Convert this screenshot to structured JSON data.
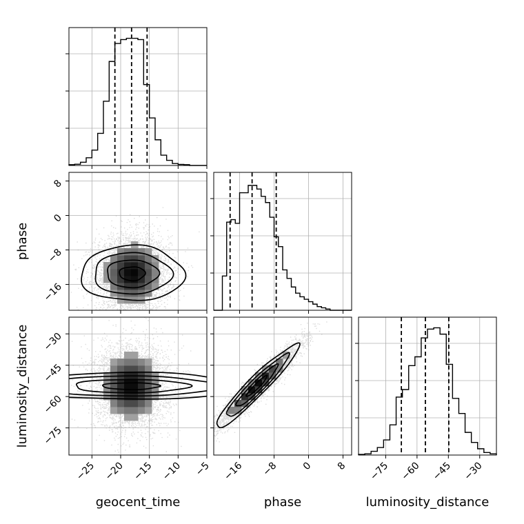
{
  "chart_data": {
    "type": "corner",
    "parameters": [
      "geocent_time",
      "phase",
      "luminosity_distance"
    ],
    "grid": true,
    "ranges": {
      "geocent_time": [
        -29,
        -5
      ],
      "phase": [
        -22,
        10
      ],
      "luminosity_distance": [
        -88,
        -22
      ]
    },
    "ticks": {
      "geocent_time": [
        -25,
        -20,
        -15,
        -10,
        -5
      ],
      "phase": [
        -16,
        -8,
        0,
        8
      ],
      "luminosity_distance": [
        -75,
        -60,
        -45,
        -30
      ]
    },
    "tick_labels": {
      "geocent_time": [
        "−25",
        "−20",
        "−15",
        "−10",
        "−5"
      ],
      "phase": [
        "−16",
        "−8",
        "0",
        "8"
      ],
      "luminosity_distance": [
        "−75",
        "−60",
        "−45",
        "−30"
      ]
    },
    "quantiles": {
      "geocent_time": [
        -21.0,
        -18.1,
        -15.4
      ],
      "phase": [
        -18.2,
        -13.1,
        -7.5
      ],
      "luminosity_distance": [
        -67.5,
        -56.0,
        -44.8
      ]
    },
    "histograms": {
      "geocent_time": {
        "edges": [
          -29,
          -28,
          -27,
          -26,
          -25,
          -24,
          -23,
          -22,
          -21,
          -20,
          -19,
          -18,
          -17,
          -16,
          -15,
          -14,
          -13,
          -12,
          -11,
          -10,
          -9,
          -8,
          -7,
          -6,
          -5
        ],
        "counts": [
          0.6,
          1.0,
          2.5,
          6.0,
          12.0,
          25.0,
          50.0,
          81.0,
          95.0,
          98.0,
          99.0,
          99.0,
          98.0,
          63.0,
          37.0,
          20.0,
          8.0,
          4.0,
          1.5,
          0.8,
          0.6,
          0.0,
          0.0,
          0.0
        ],
        "ymax": 102
      },
      "phase": {
        "edges": [
          -22,
          -21,
          -20,
          -19,
          -18,
          -17,
          -16,
          -15,
          -14,
          -13,
          -12,
          -11,
          -10,
          -9,
          -8,
          -7,
          -6,
          -5,
          -4,
          -3,
          -2,
          -1,
          0,
          1,
          2,
          3,
          4,
          5,
          6,
          7,
          8,
          9,
          10
        ],
        "counts": [
          0,
          0,
          28.0,
          72.0,
          74.0,
          71.0,
          96.0,
          96.0,
          102.0,
          102.0,
          99.0,
          93.0,
          88.0,
          76.0,
          60.0,
          52.0,
          33.0,
          26.0,
          19.0,
          14.0,
          11.0,
          9.0,
          7.0,
          5.0,
          3.0,
          2.0,
          1.0,
          0,
          0,
          0,
          0,
          0
        ],
        "ymax": 107
      },
      "luminosity_distance": {
        "edges": [
          -88,
          -85,
          -82,
          -79,
          -76,
          -73,
          -70,
          -67,
          -64,
          -61,
          -58,
          -55,
          -52,
          -49,
          -46,
          -43,
          -40,
          -37,
          -34,
          -31,
          -28,
          -25,
          -22
        ],
        "counts": [
          0.5,
          1.0,
          3.0,
          6.0,
          12.0,
          24.0,
          46.0,
          52.0,
          71.0,
          78.0,
          93.0,
          100.0,
          101.0,
          96.0,
          72.0,
          45.0,
          33.0,
          18.0,
          10.0,
          5.0,
          2.0,
          1.0
        ],
        "ymax": 104
      }
    },
    "scatter_2d": [
      {
        "x": "geocent_time",
        "y": "phase",
        "center": [
          -18.0,
          -13.5
        ],
        "sigma": [
          3.2,
          4.5
        ],
        "correlation": 0.0,
        "points": 4500
      },
      {
        "x": "geocent_time",
        "y": "luminosity_distance",
        "center": [
          -18.2,
          -55.0
        ],
        "sigma": [
          3.2,
          10.0
        ],
        "correlation": 0.0,
        "points": 4500
      },
      {
        "x": "phase",
        "y": "luminosity_distance",
        "center": [
          -12.0,
          -55.0
        ],
        "sigma": [
          4.8,
          10.0
        ],
        "correlation": 0.95,
        "points": 4500
      }
    ],
    "contour_levels_sigma": [
      0.5,
      1.0,
      1.5,
      2.0
    ]
  }
}
